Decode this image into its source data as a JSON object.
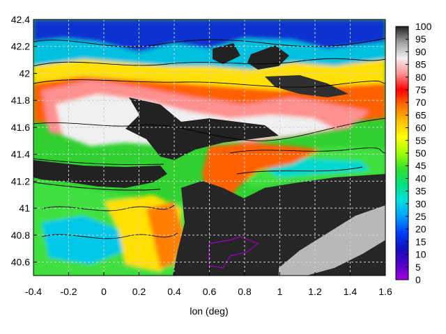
{
  "chart_data": {
    "type": "heatmap",
    "title": "",
    "xlabel": "lon (deg)",
    "ylabel": "",
    "xlim": [
      -0.4,
      1.6
    ],
    "ylim": [
      40.5,
      42.4
    ],
    "grid": true,
    "x_ticks": [
      "-0.4",
      "-0.2",
      "0",
      "0.2",
      "0.4",
      "0.6",
      "0.8",
      "1",
      "1.2",
      "1.4",
      "1.6"
    ],
    "y_ticks": [
      "40.6",
      "40.8",
      "41",
      "41.2",
      "41.4",
      "41.6",
      "41.8",
      "42",
      "42.2",
      "42.4"
    ],
    "colorbar": {
      "range": [
        0,
        100
      ],
      "ticks": [
        "0",
        "5",
        "10",
        "15",
        "20",
        "25",
        "30",
        "35",
        "40",
        "45",
        "50",
        "55",
        "60",
        "65",
        "70",
        "75",
        "80",
        "85",
        "90",
        "95",
        "100"
      ],
      "palette": [
        "#a000e0",
        "#5000c8",
        "#1010c0",
        "#0040ff",
        "#00a0ff",
        "#00e0e0",
        "#00e080",
        "#30e030",
        "#a0ff00",
        "#ffff00",
        "#ffc000",
        "#ff7000",
        "#ff0000",
        "#ff9090",
        "#f0f0f0",
        "#a0a0a0",
        "#202020"
      ]
    },
    "regions": {
      "sea_dark": "#202020",
      "sea_light": "#c0c0c0",
      "contour": "#000000",
      "purple_contour": "#a000c0"
    }
  }
}
